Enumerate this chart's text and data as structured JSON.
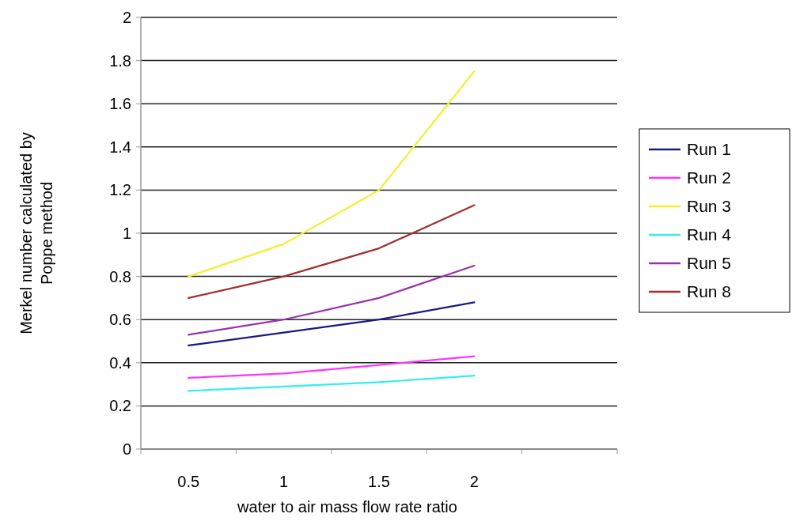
{
  "chart_data": {
    "type": "line",
    "xlabel": "water to air mass flow rate ratio",
    "ylabel": "Merkel number calculated by Poppe method",
    "categories": [
      "0.5",
      "1",
      "1.5",
      "2",
      null
    ],
    "ylim": [
      0,
      2
    ],
    "yticks": [
      0,
      0.2,
      0.4,
      0.6,
      0.8,
      1,
      1.2,
      1.4,
      1.6,
      1.8,
      2
    ],
    "grid": "y",
    "legend": "right",
    "marker": "none",
    "line_style": "solid",
    "series": [
      {
        "name": "Run 1",
        "color": "#1a1a80",
        "values": [
          0.48,
          0.54,
          0.6,
          0.68,
          null
        ]
      },
      {
        "name": "Run 2",
        "color": "#ff33ff",
        "values": [
          0.33,
          0.35,
          0.39,
          0.43,
          null
        ]
      },
      {
        "name": "Run 3",
        "color": "#f0f030",
        "values": [
          0.8,
          0.95,
          1.2,
          1.75,
          null
        ]
      },
      {
        "name": "Run 4",
        "color": "#33eeee",
        "values": [
          0.27,
          0.29,
          0.31,
          0.34,
          null
        ]
      },
      {
        "name": "Run 5",
        "color": "#9933aa",
        "values": [
          0.53,
          0.6,
          0.7,
          0.85,
          null
        ]
      },
      {
        "name": "Run 8",
        "color": "#a03030",
        "values": [
          0.7,
          0.8,
          0.93,
          1.13,
          null
        ]
      }
    ]
  }
}
